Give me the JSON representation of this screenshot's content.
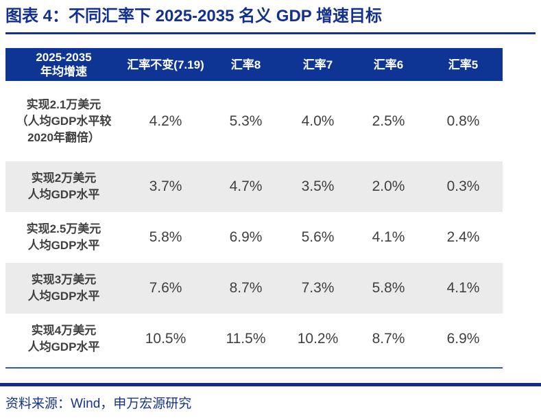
{
  "title": "图表 4：不同汇率下 2025-2035 名义 GDP 增速目标",
  "colors": {
    "brand_blue": "#0E3594",
    "title_blue": "#13308F",
    "thin_rule_blue": "#3058B8",
    "thick_rule_navy": "#112D86",
    "row_stripe_gray": "#EBEBEB",
    "body_text_gray": "#404040"
  },
  "table": {
    "header": [
      "2025-2035\n年均增速",
      "汇率不变(7.19)",
      "汇率8",
      "汇率7",
      "汇率6",
      "汇率5"
    ],
    "rows": [
      {
        "label": "实现2.1万美元\n（人均GDP水平较\n2020年翻倍）",
        "values": [
          "4.2%",
          "5.3%",
          "4.0%",
          "2.5%",
          "0.8%"
        ]
      },
      {
        "label": "实现2万美元\n人均GDP水平",
        "values": [
          "3.7%",
          "4.7%",
          "3.5%",
          "2.0%",
          "0.3%"
        ]
      },
      {
        "label": "实现2.5万美元\n人均GDP水平",
        "values": [
          "5.8%",
          "6.9%",
          "5.6%",
          "4.1%",
          "2.4%"
        ]
      },
      {
        "label": "实现3万美元\n人均GDP水平",
        "values": [
          "7.6%",
          "8.7%",
          "7.3%",
          "5.8%",
          "4.1%"
        ]
      },
      {
        "label": "实现4万美元\n人均GDP水平",
        "values": [
          "10.5%",
          "11.5%",
          "10.2%",
          "8.7%",
          "6.9%"
        ]
      }
    ]
  },
  "footer": {
    "source": "资料来源：Wind，申万宏源研究"
  }
}
